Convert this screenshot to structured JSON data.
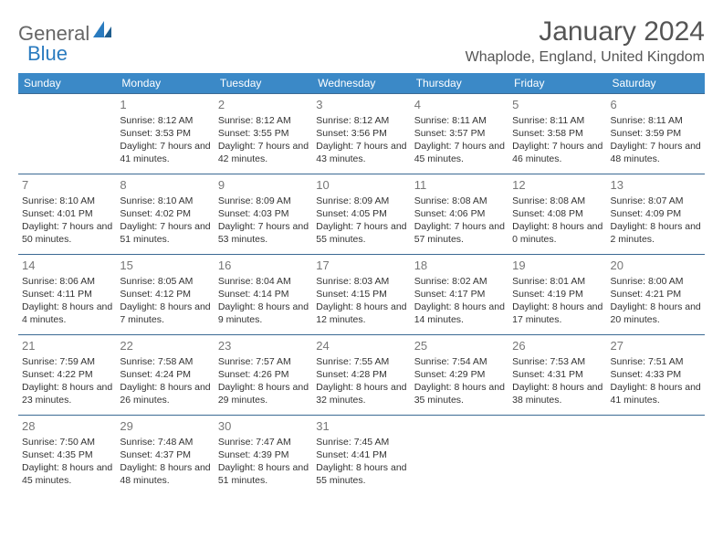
{
  "logo": {
    "general": "General",
    "blue": "Blue"
  },
  "title": "January 2024",
  "location": "Whaplode, England, United Kingdom",
  "colors": {
    "header_bg": "#3b89c7",
    "header_text": "#ffffff",
    "row_border": "#3b6a94",
    "daynum": "#777777",
    "body_text": "#333333",
    "logo_gray": "#666666",
    "logo_blue": "#2a7bbf"
  },
  "daysOfWeek": [
    "Sunday",
    "Monday",
    "Tuesday",
    "Wednesday",
    "Thursday",
    "Friday",
    "Saturday"
  ],
  "weeks": [
    [
      null,
      {
        "n": "1",
        "sr": "8:12 AM",
        "ss": "3:53 PM",
        "dl": "7 hours and 41 minutes."
      },
      {
        "n": "2",
        "sr": "8:12 AM",
        "ss": "3:55 PM",
        "dl": "7 hours and 42 minutes."
      },
      {
        "n": "3",
        "sr": "8:12 AM",
        "ss": "3:56 PM",
        "dl": "7 hours and 43 minutes."
      },
      {
        "n": "4",
        "sr": "8:11 AM",
        "ss": "3:57 PM",
        "dl": "7 hours and 45 minutes."
      },
      {
        "n": "5",
        "sr": "8:11 AM",
        "ss": "3:58 PM",
        "dl": "7 hours and 46 minutes."
      },
      {
        "n": "6",
        "sr": "8:11 AM",
        "ss": "3:59 PM",
        "dl": "7 hours and 48 minutes."
      }
    ],
    [
      {
        "n": "7",
        "sr": "8:10 AM",
        "ss": "4:01 PM",
        "dl": "7 hours and 50 minutes."
      },
      {
        "n": "8",
        "sr": "8:10 AM",
        "ss": "4:02 PM",
        "dl": "7 hours and 51 minutes."
      },
      {
        "n": "9",
        "sr": "8:09 AM",
        "ss": "4:03 PM",
        "dl": "7 hours and 53 minutes."
      },
      {
        "n": "10",
        "sr": "8:09 AM",
        "ss": "4:05 PM",
        "dl": "7 hours and 55 minutes."
      },
      {
        "n": "11",
        "sr": "8:08 AM",
        "ss": "4:06 PM",
        "dl": "7 hours and 57 minutes."
      },
      {
        "n": "12",
        "sr": "8:08 AM",
        "ss": "4:08 PM",
        "dl": "8 hours and 0 minutes."
      },
      {
        "n": "13",
        "sr": "8:07 AM",
        "ss": "4:09 PM",
        "dl": "8 hours and 2 minutes."
      }
    ],
    [
      {
        "n": "14",
        "sr": "8:06 AM",
        "ss": "4:11 PM",
        "dl": "8 hours and 4 minutes."
      },
      {
        "n": "15",
        "sr": "8:05 AM",
        "ss": "4:12 PM",
        "dl": "8 hours and 7 minutes."
      },
      {
        "n": "16",
        "sr": "8:04 AM",
        "ss": "4:14 PM",
        "dl": "8 hours and 9 minutes."
      },
      {
        "n": "17",
        "sr": "8:03 AM",
        "ss": "4:15 PM",
        "dl": "8 hours and 12 minutes."
      },
      {
        "n": "18",
        "sr": "8:02 AM",
        "ss": "4:17 PM",
        "dl": "8 hours and 14 minutes."
      },
      {
        "n": "19",
        "sr": "8:01 AM",
        "ss": "4:19 PM",
        "dl": "8 hours and 17 minutes."
      },
      {
        "n": "20",
        "sr": "8:00 AM",
        "ss": "4:21 PM",
        "dl": "8 hours and 20 minutes."
      }
    ],
    [
      {
        "n": "21",
        "sr": "7:59 AM",
        "ss": "4:22 PM",
        "dl": "8 hours and 23 minutes."
      },
      {
        "n": "22",
        "sr": "7:58 AM",
        "ss": "4:24 PM",
        "dl": "8 hours and 26 minutes."
      },
      {
        "n": "23",
        "sr": "7:57 AM",
        "ss": "4:26 PM",
        "dl": "8 hours and 29 minutes."
      },
      {
        "n": "24",
        "sr": "7:55 AM",
        "ss": "4:28 PM",
        "dl": "8 hours and 32 minutes."
      },
      {
        "n": "25",
        "sr": "7:54 AM",
        "ss": "4:29 PM",
        "dl": "8 hours and 35 minutes."
      },
      {
        "n": "26",
        "sr": "7:53 AM",
        "ss": "4:31 PM",
        "dl": "8 hours and 38 minutes."
      },
      {
        "n": "27",
        "sr": "7:51 AM",
        "ss": "4:33 PM",
        "dl": "8 hours and 41 minutes."
      }
    ],
    [
      {
        "n": "28",
        "sr": "7:50 AM",
        "ss": "4:35 PM",
        "dl": "8 hours and 45 minutes."
      },
      {
        "n": "29",
        "sr": "7:48 AM",
        "ss": "4:37 PM",
        "dl": "8 hours and 48 minutes."
      },
      {
        "n": "30",
        "sr": "7:47 AM",
        "ss": "4:39 PM",
        "dl": "8 hours and 51 minutes."
      },
      {
        "n": "31",
        "sr": "7:45 AM",
        "ss": "4:41 PM",
        "dl": "8 hours and 55 minutes."
      },
      null,
      null,
      null
    ]
  ],
  "labels": {
    "sunrise": "Sunrise: ",
    "sunset": "Sunset: ",
    "daylight": "Daylight: "
  }
}
